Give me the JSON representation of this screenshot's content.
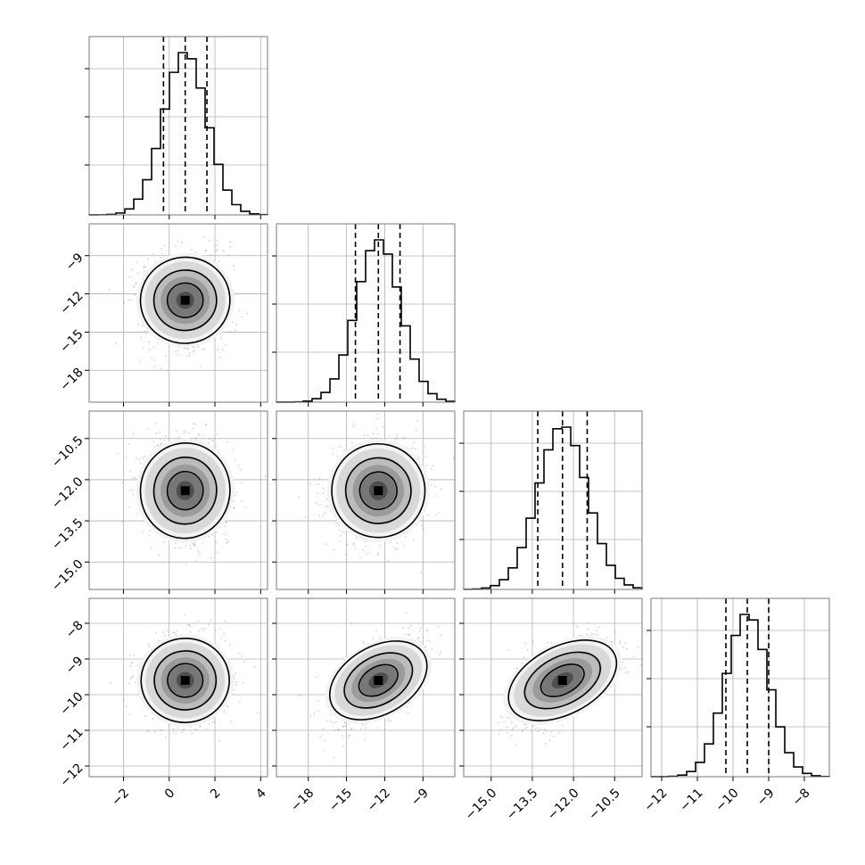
{
  "chart_data": {
    "type": "corner",
    "n_params": 4,
    "params": [
      {
        "range": [
          -3.5,
          4.3
        ],
        "ticks": [
          -2,
          0,
          2,
          4
        ],
        "tick_labels": [
          "−2",
          "0",
          "2",
          "4"
        ],
        "median": 0.7,
        "quantiles": [
          -0.25,
          1.65
        ],
        "sd": 0.95
      },
      {
        "range": [
          -20.5,
          -6.5
        ],
        "ticks": [
          -18,
          -15,
          -12,
          -9
        ],
        "tick_labels": [
          "−18",
          "−15",
          "−12",
          "−9"
        ],
        "median": -12.5,
        "quantiles": [
          -14.3,
          -10.8
        ],
        "sd": 1.75
      },
      {
        "range": [
          -16.0,
          -9.5
        ],
        "ticks": [
          -15.0,
          -13.5,
          -12.0,
          -10.5
        ],
        "tick_labels": [
          "−15.0",
          "−13.5",
          "−12.0",
          "−10.5"
        ],
        "median": -12.4,
        "quantiles": [
          -13.3,
          -11.5
        ],
        "sd": 0.9
      },
      {
        "range": [
          -12.3,
          -7.3
        ],
        "ticks": [
          -12,
          -11,
          -10,
          -9,
          -8
        ],
        "tick_labels": [
          "−12",
          "−11",
          "−10",
          "−9",
          "−8"
        ],
        "median": -9.6,
        "quantiles": [
          -10.2,
          -9.0
        ],
        "sd": 0.6
      }
    ],
    "correlations": [
      [
        1,
        0.1,
        -0.1,
        0.05
      ],
      [
        0.1,
        1,
        0.15,
        0.6
      ],
      [
        -0.1,
        0.15,
        1,
        0.6
      ],
      [
        0.05,
        0.6,
        0.6,
        1
      ]
    ],
    "colors": {
      "line": "#000000",
      "points": "#9a9a9a",
      "grid": "#b0b0b0",
      "frame": "#7a7a7a"
    },
    "grid": true
  }
}
